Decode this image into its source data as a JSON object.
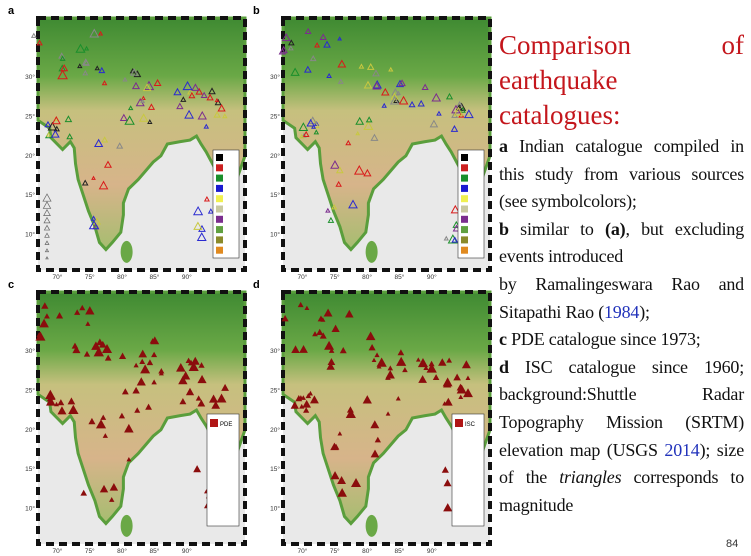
{
  "panels": [
    {
      "label": "a"
    },
    {
      "label": "b"
    },
    {
      "label": "c",
      "legend": "PDE"
    },
    {
      "label": "d",
      "legend": "ISC"
    }
  ],
  "map_axes": {
    "longitudes": [
      "70°",
      "75°",
      "80°",
      "85°",
      "90°"
    ],
    "latitudes": [
      "30°",
      "25°",
      "20°",
      "15°",
      "10°"
    ]
  },
  "heading": [
    "Comparison",
    "of",
    "earthquake catalogues:"
  ],
  "items": [
    [
      "a",
      " Indian catalogue compiled in this study from various sources (see symbolcolors);"
    ],
    [
      "b",
      " similar to ",
      "(a)",
      ", but excluding events introduced"
    ],
    [
      "by Ramalingeswara Rao and Sitapathi Rao (",
      "1984",
      ");"
    ],
    [
      "c",
      " PDE catalogue since 1973;"
    ],
    [
      "d",
      " ISC catalogue since 1960; background:Shuttle Radar Topography Mission (SRTM) elevation map (USGS ",
      "2014",
      "); size of the ",
      "triangles",
      " corresponds to magnitude"
    ]
  ],
  "page_number": "84"
}
